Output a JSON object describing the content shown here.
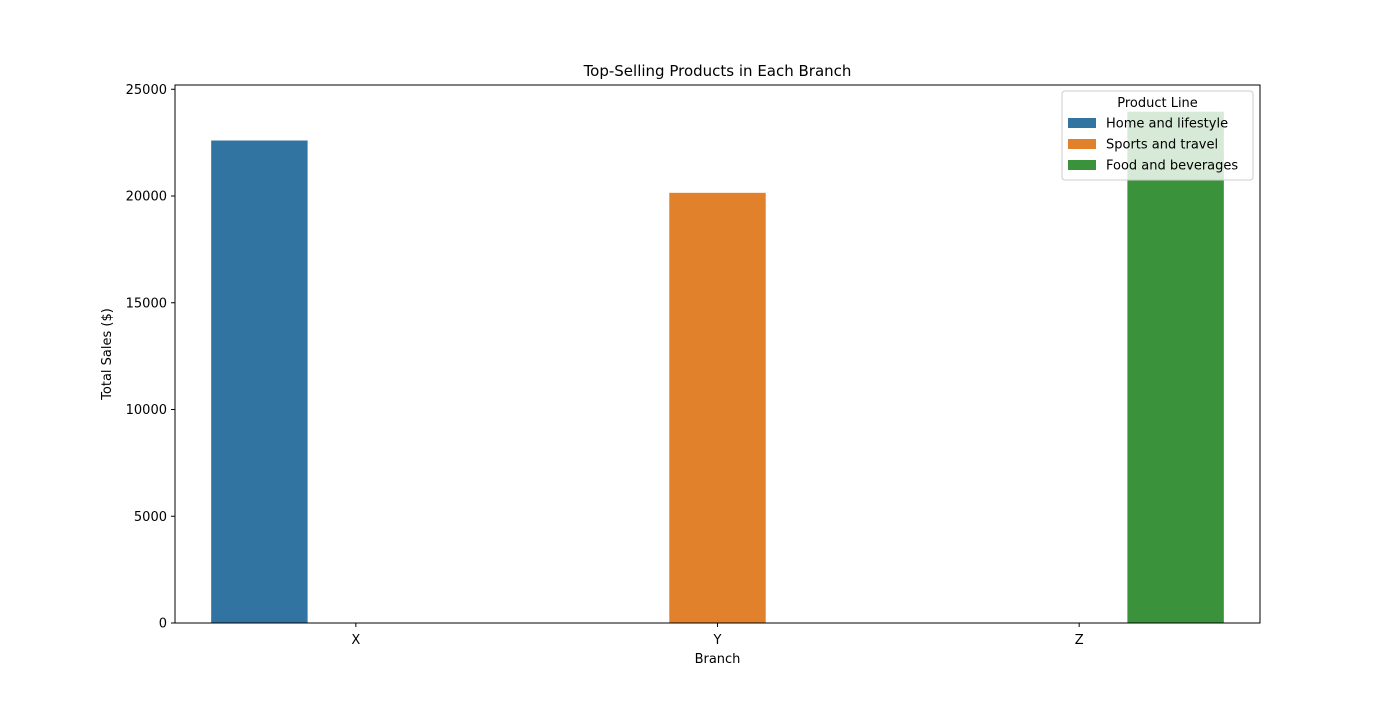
{
  "chart_data": {
    "type": "bar",
    "title": "Top-Selling Products in Each Branch",
    "xlabel": "Branch",
    "ylabel": "Total Sales ($)",
    "categories": [
      "X",
      "Y",
      "Z"
    ],
    "ylim": [
      0,
      25200
    ],
    "yticks": [
      0,
      5000,
      10000,
      15000,
      20000,
      25000
    ],
    "ytick_labels": [
      "0",
      "5000",
      "10000",
      "15000",
      "20000",
      "25000"
    ],
    "grid": false,
    "legend": {
      "title": "Product Line",
      "placement": "top-right"
    },
    "series": [
      {
        "name": "Home and lifestyle",
        "color": "#3274a1",
        "values": [
          22600,
          null,
          null
        ]
      },
      {
        "name": "Sports and travel",
        "color": "#e1812c",
        "values": [
          null,
          20150,
          null
        ]
      },
      {
        "name": "Food and beverages",
        "color": "#3a923a",
        "values": [
          null,
          null,
          23950
        ]
      }
    ]
  }
}
